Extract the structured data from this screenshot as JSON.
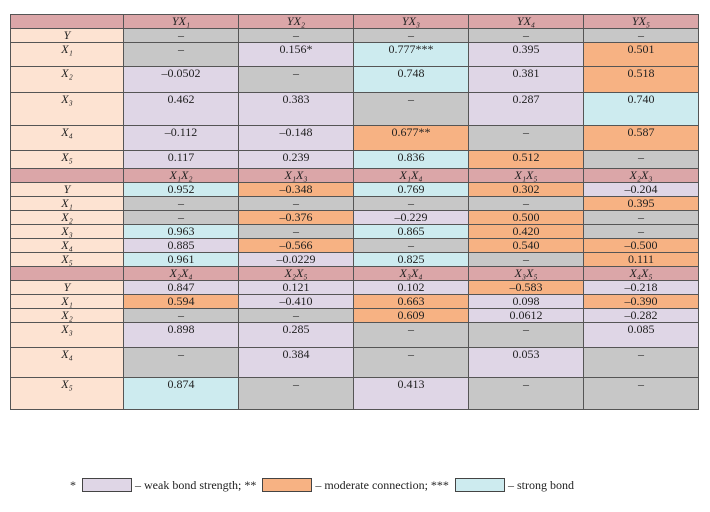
{
  "table": {
    "blocks": [
      {
        "headers": [
          "YX₁",
          "YX₂",
          "YX₃",
          "YX₄",
          "YX₅"
        ],
        "rows": [
          {
            "label": "Y",
            "cells": [
              {
                "v": "–",
                "c": "na"
              },
              {
                "v": "–",
                "c": "na"
              },
              {
                "v": "–",
                "c": "na"
              },
              {
                "v": "–",
                "c": "na"
              },
              {
                "v": "–",
                "c": "na"
              }
            ]
          },
          {
            "label": "X₁",
            "cells": [
              {
                "v": "–",
                "c": "na"
              },
              {
                "v": "0.156*",
                "c": "weak"
              },
              {
                "v": "0.777***",
                "c": "strong"
              },
              {
                "v": "0.395",
                "c": "weak"
              },
              {
                "v": "0.501",
                "c": "mod"
              }
            ]
          },
          {
            "label": "X₂",
            "cells": [
              {
                "v": "–0.0502",
                "c": "weak"
              },
              {
                "v": "–",
                "c": "na"
              },
              {
                "v": "0.748",
                "c": "strong"
              },
              {
                "v": "0.381",
                "c": "weak"
              },
              {
                "v": "0.518",
                "c": "mod"
              }
            ]
          },
          {
            "label": "X₃",
            "cells": [
              {
                "v": "0.462",
                "c": "weak"
              },
              {
                "v": "0.383",
                "c": "weak"
              },
              {
                "v": "–",
                "c": "na"
              },
              {
                "v": "0.287",
                "c": "weak"
              },
              {
                "v": "0.740",
                "c": "strong"
              }
            ]
          },
          {
            "label": "X₄",
            "cells": [
              {
                "v": "–0.112",
                "c": "weak"
              },
              {
                "v": "–0.148",
                "c": "weak"
              },
              {
                "v": "0.677**",
                "c": "mod"
              },
              {
                "v": "–",
                "c": "na"
              },
              {
                "v": "0.587",
                "c": "mod"
              }
            ]
          },
          {
            "label": "X₅",
            "cells": [
              {
                "v": "0.117",
                "c": "weak"
              },
              {
                "v": "0.239",
                "c": "weak"
              },
              {
                "v": "0.836",
                "c": "strong"
              },
              {
                "v": "0.512",
                "c": "mod"
              },
              {
                "v": "–",
                "c": "na"
              }
            ]
          }
        ]
      },
      {
        "headers": [
          "X₁X₂",
          "X₁X₃",
          "X₁X₄",
          "X₁X₅",
          "X₂X₃"
        ],
        "rows": [
          {
            "label": "Y",
            "cells": [
              {
                "v": "0.952",
                "c": "strong"
              },
              {
                "v": "–0.348",
                "c": "mod"
              },
              {
                "v": "0.769",
                "c": "strong"
              },
              {
                "v": "0.302",
                "c": "mod"
              },
              {
                "v": "–0.204",
                "c": "weak"
              }
            ]
          },
          {
            "label": "X₁",
            "cells": [
              {
                "v": "–",
                "c": "na"
              },
              {
                "v": "–",
                "c": "na"
              },
              {
                "v": "–",
                "c": "na"
              },
              {
                "v": "–",
                "c": "na"
              },
              {
                "v": "0.395",
                "c": "mod"
              }
            ]
          },
          {
            "label": "X₂",
            "cells": [
              {
                "v": "–",
                "c": "na"
              },
              {
                "v": "–0.376",
                "c": "mod"
              },
              {
                "v": "–0.229",
                "c": "weak"
              },
              {
                "v": "0.500",
                "c": "mod"
              },
              {
                "v": "–",
                "c": "na"
              }
            ]
          },
          {
            "label": "X₃",
            "cells": [
              {
                "v": "0.963",
                "c": "strong"
              },
              {
                "v": "–",
                "c": "na"
              },
              {
                "v": "0.865",
                "c": "strong"
              },
              {
                "v": "0.420",
                "c": "mod"
              },
              {
                "v": "–",
                "c": "na"
              }
            ]
          },
          {
            "label": "X₄",
            "cells": [
              {
                "v": "0.885",
                "c": "weak"
              },
              {
                "v": "–0.566",
                "c": "mod"
              },
              {
                "v": "–",
                "c": "na"
              },
              {
                "v": "0.540",
                "c": "mod"
              },
              {
                "v": "–0.500",
                "c": "mod"
              }
            ]
          },
          {
            "label": "X₅",
            "cells": [
              {
                "v": "0.961",
                "c": "strong"
              },
              {
                "v": "–0.0229",
                "c": "weak"
              },
              {
                "v": "0.825",
                "c": "strong"
              },
              {
                "v": "–",
                "c": "na"
              },
              {
                "v": "0.111",
                "c": "mod"
              }
            ]
          }
        ]
      },
      {
        "headers": [
          "X₂X₄",
          "X₂X₅",
          "X₃X₄",
          "X₃X₅",
          "X₄X₅"
        ],
        "rows": [
          {
            "label": "Y",
            "cells": [
              {
                "v": "0.847",
                "c": "weak"
              },
              {
                "v": "0.121",
                "c": "weak"
              },
              {
                "v": "0.102",
                "c": "weak"
              },
              {
                "v": "–0.583",
                "c": "mod"
              },
              {
                "v": "–0.218",
                "c": "weak"
              }
            ]
          },
          {
            "label": "X₁",
            "cells": [
              {
                "v": "0.594",
                "c": "mod"
              },
              {
                "v": "–0.410",
                "c": "weak"
              },
              {
                "v": "0.663",
                "c": "mod"
              },
              {
                "v": "0.098",
                "c": "weak"
              },
              {
                "v": "–0.390",
                "c": "mod"
              }
            ]
          },
          {
            "label": "X₂",
            "cells": [
              {
                "v": "–",
                "c": "na"
              },
              {
                "v": "–",
                "c": "na"
              },
              {
                "v": "0.609",
                "c": "mod"
              },
              {
                "v": "0.0612",
                "c": "weak"
              },
              {
                "v": "–0.282",
                "c": "weak"
              }
            ]
          },
          {
            "label": "X₃",
            "cells": [
              {
                "v": "0.898",
                "c": "weak"
              },
              {
                "v": "0.285",
                "c": "weak"
              },
              {
                "v": "–",
                "c": "na"
              },
              {
                "v": "–",
                "c": "na"
              },
              {
                "v": "0.085",
                "c": "weak"
              }
            ]
          },
          {
            "label": "X₄",
            "cells": [
              {
                "v": "–",
                "c": "na"
              },
              {
                "v": "0.384",
                "c": "weak"
              },
              {
                "v": "–",
                "c": "na"
              },
              {
                "v": "0.053",
                "c": "weak"
              },
              {
                "v": "–",
                "c": "na"
              }
            ]
          },
          {
            "label": "X₅",
            "cells": [
              {
                "v": "0.874",
                "c": "strong"
              },
              {
                "v": "–",
                "c": "na"
              },
              {
                "v": "0.413",
                "c": "weak"
              },
              {
                "v": "–",
                "c": "na"
              },
              {
                "v": "–",
                "c": "na"
              }
            ]
          }
        ]
      }
    ]
  },
  "legend": {
    "weak_marker": "*",
    "weak_text": "– weak bond strength; **",
    "moderate_text": "– moderate connection; ***",
    "strong_text": "– strong bond"
  },
  "colors": {
    "header": "#dba6a8",
    "row_label": "#fde3d2",
    "weak": "#dfd6e6",
    "moderate": "#f7b283",
    "strong": "#cdebef",
    "not_applicable": "#c7c7c7"
  }
}
